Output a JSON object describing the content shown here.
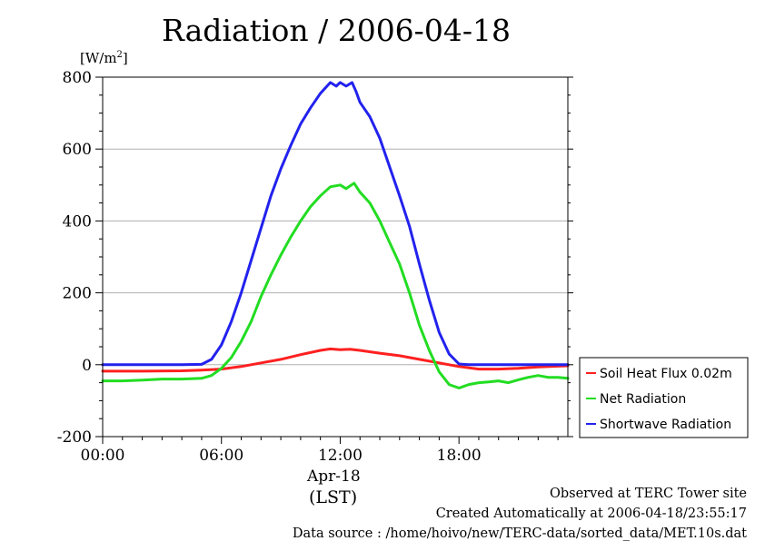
{
  "chart_data": {
    "type": "line",
    "title": "Radiation / 2006-04-18",
    "ylabel": "[W/m",
    "ylabel_sup": "2",
    "ylabel_tail": "]",
    "ylim": [
      -200,
      800
    ],
    "yticks": [
      -200,
      0,
      200,
      400,
      600,
      800
    ],
    "xlim": [
      0,
      23.5
    ],
    "xticks": [
      {
        "x": 0,
        "label": "00:00"
      },
      {
        "x": 6,
        "label": "06:00"
      },
      {
        "x": 12,
        "label": "12:00"
      },
      {
        "x": 18,
        "label": "18:00"
      }
    ],
    "date_label": "Apr-18",
    "xunit_label": "(LST)",
    "grid": "horizontal",
    "legend_position": "right",
    "series": [
      {
        "name": "Soil Heat Flux 0.02m",
        "color": "#ff2020",
        "points": [
          [
            0,
            -18
          ],
          [
            2,
            -18
          ],
          [
            4,
            -17
          ],
          [
            5,
            -15
          ],
          [
            6,
            -12
          ],
          [
            7,
            -5
          ],
          [
            8,
            5
          ],
          [
            9,
            15
          ],
          [
            10,
            28
          ],
          [
            11,
            40
          ],
          [
            11.5,
            44
          ],
          [
            12,
            42
          ],
          [
            12.5,
            43
          ],
          [
            13,
            40
          ],
          [
            14,
            32
          ],
          [
            15,
            25
          ],
          [
            16,
            15
          ],
          [
            17,
            5
          ],
          [
            18,
            -5
          ],
          [
            19,
            -12
          ],
          [
            20,
            -12
          ],
          [
            21,
            -10
          ],
          [
            22,
            -6
          ],
          [
            23,
            -4
          ],
          [
            23.5,
            -3
          ]
        ]
      },
      {
        "name": "Net Radiation",
        "color": "#22dd22",
        "points": [
          [
            0,
            -45
          ],
          [
            1,
            -45
          ],
          [
            2,
            -43
          ],
          [
            3,
            -40
          ],
          [
            4,
            -40
          ],
          [
            5,
            -38
          ],
          [
            5.5,
            -30
          ],
          [
            6,
            -10
          ],
          [
            6.5,
            20
          ],
          [
            7,
            65
          ],
          [
            7.5,
            120
          ],
          [
            8,
            190
          ],
          [
            8.5,
            250
          ],
          [
            9,
            305
          ],
          [
            9.5,
            355
          ],
          [
            10,
            400
          ],
          [
            10.5,
            440
          ],
          [
            11,
            470
          ],
          [
            11.5,
            495
          ],
          [
            12,
            500
          ],
          [
            12.3,
            490
          ],
          [
            12.7,
            505
          ],
          [
            13,
            480
          ],
          [
            13.5,
            450
          ],
          [
            14,
            400
          ],
          [
            14.5,
            340
          ],
          [
            15,
            280
          ],
          [
            15.5,
            200
          ],
          [
            16,
            110
          ],
          [
            16.5,
            40
          ],
          [
            17,
            -20
          ],
          [
            17.5,
            -55
          ],
          [
            18,
            -65
          ],
          [
            18.5,
            -55
          ],
          [
            19,
            -50
          ],
          [
            19.5,
            -48
          ],
          [
            20,
            -45
          ],
          [
            20.5,
            -50
          ],
          [
            21,
            -42
          ],
          [
            21.5,
            -35
          ],
          [
            22,
            -30
          ],
          [
            22.5,
            -35
          ],
          [
            23,
            -35
          ],
          [
            23.5,
            -38
          ]
        ]
      },
      {
        "name": "Shortwave Radiation",
        "color": "#2222ee",
        "points": [
          [
            0,
            0
          ],
          [
            1,
            0
          ],
          [
            2,
            0
          ],
          [
            3,
            0
          ],
          [
            4,
            0
          ],
          [
            5,
            1
          ],
          [
            5.5,
            15
          ],
          [
            6,
            55
          ],
          [
            6.5,
            120
          ],
          [
            7,
            200
          ],
          [
            7.5,
            290
          ],
          [
            8,
            380
          ],
          [
            8.5,
            470
          ],
          [
            9,
            545
          ],
          [
            9.5,
            610
          ],
          [
            10,
            670
          ],
          [
            10.5,
            715
          ],
          [
            11,
            755
          ],
          [
            11.5,
            785
          ],
          [
            11.8,
            775
          ],
          [
            12,
            785
          ],
          [
            12.3,
            775
          ],
          [
            12.6,
            785
          ],
          [
            12.8,
            760
          ],
          [
            13,
            730
          ],
          [
            13.5,
            690
          ],
          [
            14,
            630
          ],
          [
            14.5,
            550
          ],
          [
            15,
            470
          ],
          [
            15.5,
            385
          ],
          [
            16,
            280
          ],
          [
            16.5,
            180
          ],
          [
            17,
            90
          ],
          [
            17.5,
            30
          ],
          [
            18,
            2
          ],
          [
            18.5,
            0
          ],
          [
            19,
            0
          ],
          [
            20,
            0
          ],
          [
            21,
            0
          ],
          [
            22,
            0
          ],
          [
            23,
            0
          ],
          [
            23.5,
            0
          ]
        ]
      }
    ]
  },
  "footer": {
    "line1": "Observed at TERC Tower site",
    "line2": "Created Automatically at 2006-04-18/23:55:17",
    "line3": "Data source : /home/hoivo/new/TERC-data/sorted_data/MET.10s.dat"
  }
}
